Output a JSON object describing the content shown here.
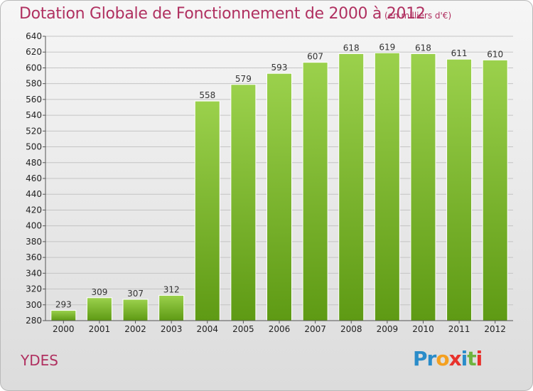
{
  "title": "Dotation Globale de Fonctionnement de 2000 à 2012",
  "subtitle": "(en milliers d'€)",
  "commune": "YDES",
  "logo": {
    "letters": [
      "P",
      "r",
      "o",
      "x",
      "i",
      "t",
      "i"
    ],
    "colors": [
      "#2a8cc9",
      "#2a8cc9",
      "#f4a020",
      "#e8322c",
      "#2a8cc9",
      "#6fb43f",
      "#e8322c"
    ]
  },
  "chart_data": {
    "type": "bar",
    "categories": [
      "2000",
      "2001",
      "2002",
      "2003",
      "2004",
      "2005",
      "2006",
      "2007",
      "2008",
      "2009",
      "2010",
      "2011",
      "2012"
    ],
    "values": [
      293,
      309,
      307,
      312,
      558,
      579,
      593,
      607,
      618,
      619,
      618,
      611,
      610
    ],
    "ylim": [
      280,
      640
    ],
    "yticks": [
      280,
      300,
      320,
      340,
      360,
      380,
      400,
      420,
      440,
      460,
      480,
      500,
      520,
      540,
      560,
      580,
      600,
      620,
      640
    ],
    "grid": true,
    "bar_color_top": "#9bd14c",
    "bar_color_bottom": "#5e9a14"
  }
}
